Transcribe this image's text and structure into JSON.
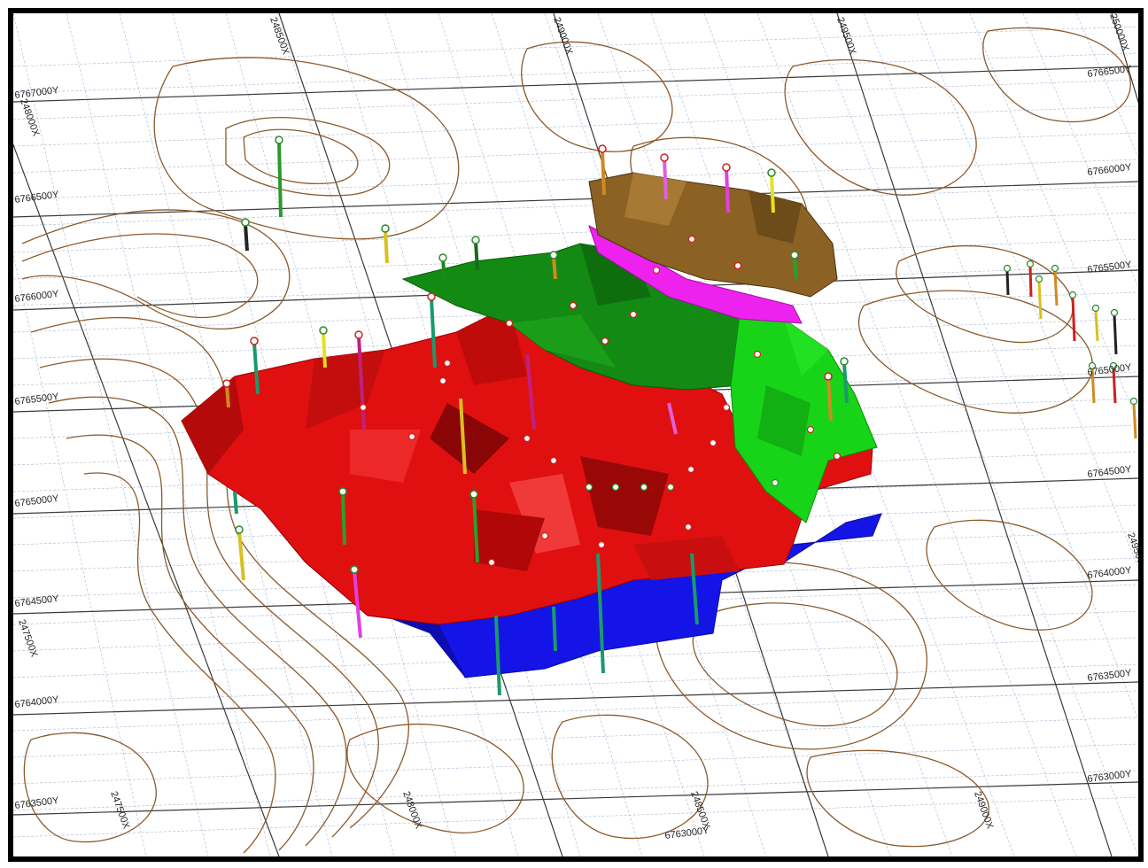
{
  "caption": "",
  "labels_y_left": [
    "6767000Y",
    "6766500Y",
    "6766000Y",
    "6765500Y",
    "6765000Y",
    "6764500Y",
    "6764000Y",
    "6763500Y"
  ],
  "labels_y_right": [
    "6766500Y",
    "6766000Y",
    "6765500Y",
    "6765000Y",
    "6764500Y",
    "6764000Y",
    "6763500Y",
    "6763000Y"
  ],
  "labels_x_bottom": [
    "247500X",
    "248000X",
    "248500X",
    "249000X"
  ],
  "labels_x_top": [
    "248500X",
    "249000X",
    "249500X",
    "250000X"
  ],
  "labels_x_left": [
    "248000X",
    "247500X"
  ],
  "label_y_bottom": "6763000Y",
  "label_x_right": "249500X",
  "colors": {
    "contour": "#8b5a2b",
    "gridMajor": "#444444",
    "gridMinor": "#9aa8c8",
    "solidRed": "#e01010",
    "solidBlue": "#1414e6",
    "solidGreenDark": "#138a13",
    "solidGreenLight": "#18d418",
    "solidBrown": "#8b6224",
    "solidMagenta": "#ee22ee"
  }
}
